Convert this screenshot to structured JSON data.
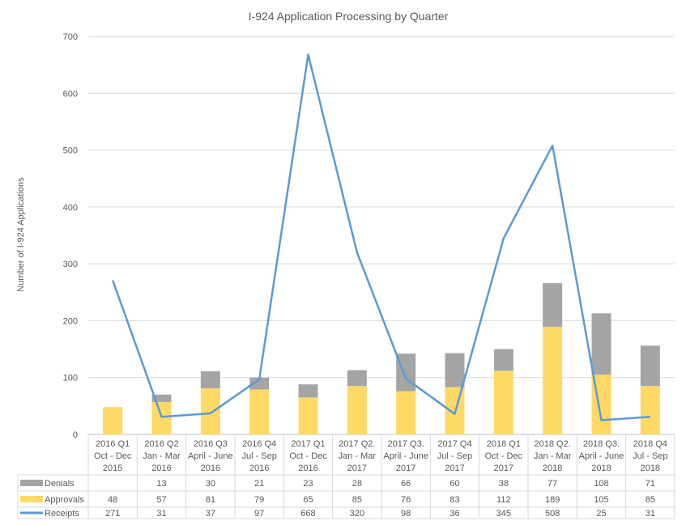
{
  "chart_data": {
    "type": "bar",
    "title": "I-924 Application Processing by Quarter",
    "ylabel": "Number of I-924 Applications",
    "xlabel": "",
    "ylim": [
      0,
      700
    ],
    "yticks": [
      0,
      100,
      200,
      300,
      400,
      500,
      600,
      700
    ],
    "grid": true,
    "legend": "data-table-bottom",
    "categories": [
      [
        "2016 Q1",
        "Oct - Dec",
        "2015"
      ],
      [
        "2016 Q2",
        "Jan - Mar",
        "2016"
      ],
      [
        "2016 Q3",
        "April - June",
        "2016"
      ],
      [
        "2016 Q4",
        "Jul - Sep",
        "2016"
      ],
      [
        "2017 Q1",
        "Oct - Dec",
        "2016"
      ],
      [
        "2017 Q2.",
        "Jan - Mar",
        "2017"
      ],
      [
        "2017 Q3.",
        "April - June",
        "2017"
      ],
      [
        "2017 Q4",
        "Jul - Sep",
        "2017"
      ],
      [
        "2018 Q1",
        "Oct - Dec",
        "2017"
      ],
      [
        "2018 Q2.",
        "Jan - Mar",
        "2018"
      ],
      [
        "2018 Q3.",
        "April - June",
        "2018"
      ],
      [
        "2018 Q4",
        "Jul - Sep",
        "2018"
      ]
    ],
    "series": [
      {
        "name": "Denials",
        "type": "stacked-bar",
        "color": "#A5A5A5",
        "values": [
          null,
          13,
          30,
          21,
          23,
          28,
          66,
          60,
          38,
          77,
          108,
          71
        ]
      },
      {
        "name": "Approvals",
        "type": "stacked-bar",
        "color": "#FFD966",
        "values": [
          48,
          57,
          81,
          79,
          65,
          85,
          76,
          83,
          112,
          189,
          105,
          85
        ]
      },
      {
        "name": "Receipts",
        "type": "line",
        "color": "#5B9BD5",
        "values": [
          271,
          31,
          37,
          97,
          668,
          320,
          98,
          36,
          345,
          508,
          25,
          31
        ]
      }
    ]
  }
}
